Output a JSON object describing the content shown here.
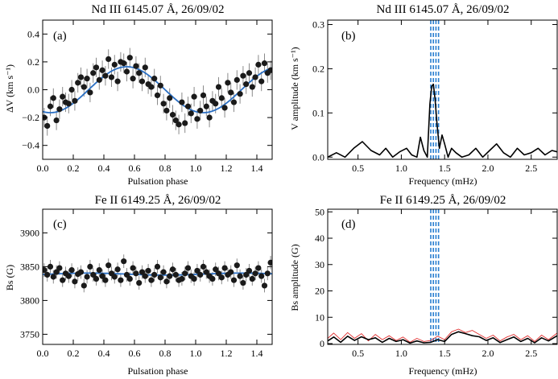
{
  "colors": {
    "model": "#2a6fc4",
    "marker": "#1a1a1a",
    "errorbar": "#8a8a8a",
    "red": "#e03030",
    "freq_lines": "#2a7fd0"
  },
  "chart_data": [
    {
      "type": "scatter",
      "panel_label": "(a)",
      "title": "Nd III 6145.07 Å, 26/09/02",
      "xlabel": "Pulsation phase",
      "ylabel": "ΔV (km s⁻¹)",
      "xlim": [
        0,
        1.5
      ],
      "ylim": [
        -0.5,
        0.5
      ],
      "xticks": [
        0.0,
        0.2,
        0.4,
        0.6,
        0.8,
        1.0,
        1.2,
        1.4
      ],
      "yticks": [
        -0.4,
        -0.2,
        0.0,
        0.2,
        0.4
      ],
      "xtick_labels": [
        "0.0",
        "0.2",
        "0.4",
        "0.6",
        "0.8",
        "1.0",
        "1.2",
        "1.4"
      ],
      "ytick_labels": [
        "−0.4",
        "−0.2",
        "0.0",
        "0.2",
        "0.4"
      ],
      "error": 0.07,
      "model": {
        "type": "sinusoid",
        "mean": 0.0,
        "amplitude": 0.165,
        "phase_of_max": 0.55
      },
      "x": [
        0.01,
        0.03,
        0.05,
        0.07,
        0.09,
        0.11,
        0.13,
        0.15,
        0.17,
        0.19,
        0.21,
        0.23,
        0.25,
        0.27,
        0.29,
        0.31,
        0.33,
        0.35,
        0.37,
        0.39,
        0.41,
        0.43,
        0.45,
        0.47,
        0.49,
        0.51,
        0.53,
        0.55,
        0.57,
        0.59,
        0.61,
        0.63,
        0.65,
        0.67,
        0.69,
        0.71,
        0.73,
        0.75,
        0.77,
        0.79,
        0.81,
        0.83,
        0.85,
        0.87,
        0.89,
        0.91,
        0.93,
        0.95,
        0.97,
        0.99,
        1.01,
        1.03,
        1.05,
        1.07,
        1.09,
        1.11,
        1.13,
        1.15,
        1.17,
        1.19,
        1.21,
        1.23,
        1.25,
        1.27,
        1.29,
        1.31,
        1.33,
        1.35,
        1.37,
        1.39,
        1.41,
        1.43,
        1.45,
        1.47,
        1.49
      ],
      "y": [
        -0.2,
        -0.26,
        -0.12,
        -0.06,
        -0.22,
        -0.14,
        -0.05,
        -0.09,
        -0.1,
        0.0,
        -0.08,
        0.05,
        0.09,
        0.02,
        0.08,
        -0.02,
        0.12,
        0.16,
        0.07,
        0.14,
        0.1,
        0.22,
        0.09,
        0.18,
        0.06,
        0.2,
        0.19,
        0.13,
        0.23,
        0.08,
        0.17,
        0.12,
        0.06,
        0.16,
        0.04,
        0.02,
        0.08,
        -0.04,
        0.03,
        -0.1,
        -0.15,
        -0.06,
        -0.18,
        -0.22,
        -0.25,
        -0.09,
        -0.24,
        -0.12,
        -0.17,
        -0.05,
        -0.21,
        -0.15,
        -0.04,
        -0.12,
        -0.2,
        -0.08,
        -0.1,
        0.02,
        -0.06,
        -0.13,
        0.05,
        -0.02,
        -0.09,
        0.07,
        -0.03,
        0.1,
        0.04,
        0.12,
        0.02,
        0.09,
        0.18,
        0.06,
        0.19,
        0.12,
        0.14
      ]
    },
    {
      "type": "line",
      "panel_label": "(b)",
      "title": "Nd III 6145.07 Å, 26/09/02",
      "xlabel": "Frequency (mHz)",
      "ylabel": "V amplitude (km s⁻¹)",
      "xlim": [
        0.15,
        2.8
      ],
      "ylim": [
        -0.005,
        0.31
      ],
      "xticks": [
        0.5,
        1.0,
        1.5,
        2.0,
        2.5
      ],
      "yticks": [
        0.0,
        0.1,
        0.2,
        0.3
      ],
      "xtick_labels": [
        "0.5",
        "1.0",
        "1.5",
        "2.0",
        "2.5"
      ],
      "ytick_labels": [
        "0.0",
        "0.1",
        "0.2",
        "0.3"
      ],
      "vlines": [
        1.34,
        1.37,
        1.4,
        1.43
      ],
      "x": [
        0.15,
        0.25,
        0.35,
        0.45,
        0.55,
        0.65,
        0.75,
        0.82,
        0.9,
        0.98,
        1.06,
        1.12,
        1.18,
        1.22,
        1.26,
        1.3,
        1.33,
        1.35,
        1.37,
        1.39,
        1.41,
        1.44,
        1.47,
        1.5,
        1.54,
        1.58,
        1.63,
        1.7,
        1.78,
        1.86,
        1.94,
        2.02,
        2.1,
        2.18,
        2.26,
        2.34,
        2.42,
        2.5,
        2.58,
        2.66,
        2.74,
        2.8
      ],
      "y": [
        0.0,
        0.01,
        0.0,
        0.02,
        0.035,
        0.015,
        0.005,
        0.02,
        0.0,
        0.012,
        0.02,
        0.005,
        0.0,
        0.045,
        0.015,
        0.0,
        0.12,
        0.16,
        0.165,
        0.13,
        0.08,
        0.02,
        0.05,
        0.03,
        0.0,
        0.02,
        0.01,
        0.0,
        0.005,
        0.02,
        0.0,
        0.015,
        0.03,
        0.01,
        0.0,
        0.02,
        0.005,
        0.01,
        0.02,
        0.005,
        0.015,
        0.012
      ]
    },
    {
      "type": "scatter",
      "panel_label": "(c)",
      "title": "Fe II 6149.25 Å, 26/09/02",
      "xlabel": "Pulsation phase",
      "ylabel": "Bs (G)",
      "xlim": [
        0,
        1.5
      ],
      "ylim": [
        3735,
        3935
      ],
      "xticks": [
        0.0,
        0.2,
        0.4,
        0.6,
        0.8,
        1.0,
        1.2,
        1.4
      ],
      "yticks": [
        3750,
        3800,
        3850,
        3900
      ],
      "xtick_labels": [
        "0.0",
        "0.2",
        "0.4",
        "0.6",
        "0.8",
        "1.0",
        "1.2",
        "1.4"
      ],
      "ytick_labels": [
        "3750",
        "3800",
        "3850",
        "3900"
      ],
      "error": 10,
      "model": {
        "type": "sinusoid",
        "mean": 3839,
        "amplitude": 1.5,
        "phase_of_max": 0.3
      },
      "x": [
        0.01,
        0.03,
        0.05,
        0.07,
        0.09,
        0.11,
        0.13,
        0.15,
        0.17,
        0.19,
        0.21,
        0.23,
        0.25,
        0.27,
        0.29,
        0.31,
        0.33,
        0.35,
        0.37,
        0.39,
        0.41,
        0.43,
        0.45,
        0.47,
        0.49,
        0.51,
        0.53,
        0.55,
        0.57,
        0.59,
        0.61,
        0.63,
        0.65,
        0.67,
        0.69,
        0.71,
        0.73,
        0.75,
        0.77,
        0.79,
        0.81,
        0.83,
        0.85,
        0.87,
        0.89,
        0.91,
        0.93,
        0.95,
        0.97,
        0.99,
        1.01,
        1.03,
        1.05,
        1.07,
        1.09,
        1.11,
        1.13,
        1.15,
        1.17,
        1.19,
        1.21,
        1.23,
        1.25,
        1.27,
        1.29,
        1.31,
        1.33,
        1.35,
        1.37,
        1.39,
        1.41,
        1.43,
        1.45,
        1.47,
        1.49
      ],
      "y": [
        3845,
        3838,
        3850,
        3835,
        3842,
        3848,
        3830,
        3840,
        3836,
        3845,
        3828,
        3839,
        3842,
        3822,
        3835,
        3850,
        3838,
        3832,
        3845,
        3836,
        3830,
        3852,
        3840,
        3835,
        3846,
        3830,
        3858,
        3838,
        3832,
        3848,
        3840,
        3826,
        3842,
        3836,
        3844,
        3830,
        3838,
        3850,
        3834,
        3842,
        3828,
        3836,
        3846,
        3838,
        3830,
        3832,
        3840,
        3848,
        3836,
        3832,
        3844,
        3838,
        3850,
        3842,
        3836,
        3832,
        3846,
        3840,
        3834,
        3848,
        3838,
        3842,
        3830,
        3852,
        3836,
        3826,
        3838,
        3844,
        3832,
        3840,
        3848,
        3836,
        3822,
        3840,
        3856
      ]
    },
    {
      "type": "line",
      "panel_label": "(d)",
      "title": "Fe II 6149.25 Å, 26/09/02",
      "xlabel": "Frequency (mHz)",
      "ylabel": "Bs amplitude (G)",
      "xlim": [
        0.15,
        2.8
      ],
      "ylim": [
        -0.3,
        51
      ],
      "xticks": [
        0.5,
        1.0,
        1.5,
        2.0,
        2.5
      ],
      "yticks": [
        0,
        10,
        20,
        30,
        40,
        50
      ],
      "xtick_labels": [
        "0.5",
        "1.0",
        "1.5",
        "2.0",
        "2.5"
      ],
      "ytick_labels": [
        "0",
        "10",
        "20",
        "30",
        "40",
        "50"
      ],
      "vlines": [
        1.34,
        1.37,
        1.4,
        1.43
      ],
      "series": [
        {
          "color": "black",
          "x": [
            0.15,
            0.22,
            0.3,
            0.38,
            0.46,
            0.54,
            0.62,
            0.7,
            0.78,
            0.86,
            0.94,
            1.02,
            1.1,
            1.18,
            1.26,
            1.34,
            1.42,
            1.5,
            1.58,
            1.66,
            1.74,
            1.82,
            1.9,
            1.98,
            2.06,
            2.14,
            2.22,
            2.3,
            2.38,
            2.46,
            2.54,
            2.62,
            2.7,
            2.8
          ],
          "y": [
            1.0,
            2.5,
            0.5,
            2.8,
            1.2,
            2.6,
            1.5,
            2.2,
            0.5,
            2.0,
            0.8,
            1.5,
            0.2,
            1.0,
            0.3,
            0.5,
            1.5,
            0.8,
            3.5,
            4.5,
            3.8,
            3.0,
            2.6,
            1.2,
            2.2,
            0.4,
            1.5,
            2.5,
            0.8,
            2.0,
            0.3,
            2.2,
            1.0,
            3.0
          ]
        },
        {
          "color": "red",
          "x": [
            0.15,
            0.22,
            0.3,
            0.38,
            0.46,
            0.54,
            0.62,
            0.7,
            0.78,
            0.86,
            0.94,
            1.02,
            1.1,
            1.18,
            1.26,
            1.34,
            1.42,
            1.5,
            1.58,
            1.66,
            1.74,
            1.82,
            1.9,
            1.98,
            2.06,
            2.14,
            2.22,
            2.3,
            2.38,
            2.46,
            2.54,
            2.62,
            2.7,
            2.8
          ],
          "y": [
            2.0,
            4.0,
            1.5,
            4.2,
            2.0,
            3.8,
            1.0,
            3.5,
            1.5,
            3.0,
            1.2,
            2.5,
            0.5,
            2.0,
            0.8,
            1.2,
            2.8,
            1.5,
            4.5,
            5.5,
            4.2,
            5.0,
            3.5,
            2.0,
            3.2,
            1.0,
            2.5,
            3.5,
            1.5,
            3.0,
            0.8,
            3.2,
            1.5,
            4.0
          ]
        }
      ]
    }
  ]
}
